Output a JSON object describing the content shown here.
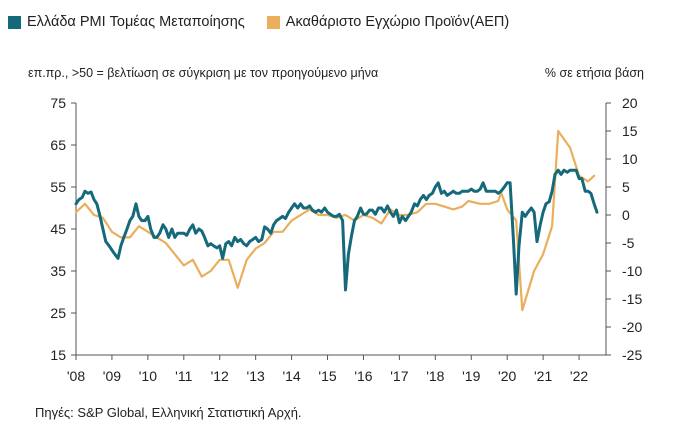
{
  "legend": {
    "pmi": "Ελλάδα PMI Τομέας Μεταποίησης",
    "gdp": "Ακαθάριστο Εγχώριο Προϊόν(ΑΕΠ)"
  },
  "notes": {
    "left": "επ.πρ., >50 = βελτίωση σε σύγκριση με τον προηγούμενο μήνα",
    "right": "% σε ετήσια βάση"
  },
  "source": "Πηγές: S&P Global, Ελληνική Στατιστική Αρχή.",
  "colors": {
    "pmi": "#14697a",
    "gdp": "#eaae5c",
    "axis": "#555555"
  },
  "chart_data": {
    "type": "line",
    "x_tick_labels": [
      "'08",
      "'09",
      "'10",
      "'11",
      "'12",
      "'13",
      "'14",
      "'15",
      "'16",
      "'17",
      "'18",
      "'19",
      "'20",
      "'21",
      "'22"
    ],
    "x_range": [
      2008.0,
      2022.75
    ],
    "y_left": {
      "range": [
        15,
        75
      ],
      "ticks": [
        15,
        25,
        35,
        45,
        55,
        65,
        75
      ]
    },
    "y_right": {
      "range": [
        -25,
        20
      ],
      "ticks": [
        -25,
        -20,
        -15,
        -10,
        -5,
        0,
        5,
        10,
        15,
        20
      ]
    },
    "series": [
      {
        "name": "Ελλάδα PMI Τομέας Μεταποίησης",
        "axis": "left",
        "points": [
          [
            2008.0,
            51
          ],
          [
            2008.08,
            52
          ],
          [
            2008.17,
            52.5
          ],
          [
            2008.25,
            54
          ],
          [
            2008.33,
            53.5
          ],
          [
            2008.42,
            53.8
          ],
          [
            2008.5,
            52
          ],
          [
            2008.58,
            51
          ],
          [
            2008.67,
            48
          ],
          [
            2008.75,
            45
          ],
          [
            2008.83,
            42
          ],
          [
            2008.92,
            41
          ],
          [
            2009.0,
            40
          ],
          [
            2009.08,
            39
          ],
          [
            2009.17,
            38
          ],
          [
            2009.25,
            41
          ],
          [
            2009.33,
            43
          ],
          [
            2009.42,
            45
          ],
          [
            2009.5,
            47
          ],
          [
            2009.58,
            48
          ],
          [
            2009.67,
            51
          ],
          [
            2009.75,
            48
          ],
          [
            2009.83,
            47
          ],
          [
            2009.92,
            47
          ],
          [
            2010.0,
            48
          ],
          [
            2010.08,
            45
          ],
          [
            2010.17,
            43
          ],
          [
            2010.25,
            43
          ],
          [
            2010.33,
            44
          ],
          [
            2010.42,
            46
          ],
          [
            2010.5,
            45
          ],
          [
            2010.58,
            43
          ],
          [
            2010.67,
            45
          ],
          [
            2010.75,
            43
          ],
          [
            2010.83,
            44
          ],
          [
            2010.92,
            44
          ],
          [
            2011.0,
            44
          ],
          [
            2011.08,
            43.5
          ],
          [
            2011.17,
            45
          ],
          [
            2011.25,
            46
          ],
          [
            2011.33,
            44
          ],
          [
            2011.42,
            45
          ],
          [
            2011.5,
            44.5
          ],
          [
            2011.58,
            43
          ],
          [
            2011.67,
            41
          ],
          [
            2011.75,
            41.5
          ],
          [
            2011.83,
            41
          ],
          [
            2011.92,
            40.5
          ],
          [
            2012.0,
            41
          ],
          [
            2012.08,
            38
          ],
          [
            2012.17,
            41.5
          ],
          [
            2012.25,
            42
          ],
          [
            2012.33,
            41
          ],
          [
            2012.42,
            43
          ],
          [
            2012.5,
            42
          ],
          [
            2012.58,
            42.5
          ],
          [
            2012.67,
            41.5
          ],
          [
            2012.75,
            41
          ],
          [
            2012.83,
            42
          ],
          [
            2012.92,
            42.5
          ],
          [
            2013.0,
            43
          ],
          [
            2013.08,
            42
          ],
          [
            2013.17,
            42.5
          ],
          [
            2013.25,
            45.5
          ],
          [
            2013.33,
            45
          ],
          [
            2013.42,
            44
          ],
          [
            2013.5,
            46
          ],
          [
            2013.58,
            47
          ],
          [
            2013.67,
            47.5
          ],
          [
            2013.75,
            48
          ],
          [
            2013.83,
            47.5
          ],
          [
            2013.92,
            49
          ],
          [
            2014.0,
            50
          ],
          [
            2014.08,
            51
          ],
          [
            2014.17,
            50
          ],
          [
            2014.25,
            51
          ],
          [
            2014.33,
            50
          ],
          [
            2014.42,
            50
          ],
          [
            2014.5,
            50.5
          ],
          [
            2014.58,
            49.5
          ],
          [
            2014.67,
            49
          ],
          [
            2014.75,
            49.5
          ],
          [
            2014.83,
            49
          ],
          [
            2014.92,
            50
          ],
          [
            2015.0,
            49
          ],
          [
            2015.08,
            48.5
          ],
          [
            2015.17,
            48
          ],
          [
            2015.25,
            48
          ],
          [
            2015.33,
            48.5
          ],
          [
            2015.42,
            47
          ],
          [
            2015.5,
            30.5
          ],
          [
            2015.58,
            39
          ],
          [
            2015.67,
            43.5
          ],
          [
            2015.75,
            47
          ],
          [
            2015.83,
            48
          ],
          [
            2015.92,
            50
          ],
          [
            2016.0,
            48.5
          ],
          [
            2016.08,
            48.5
          ],
          [
            2016.17,
            49.5
          ],
          [
            2016.25,
            49.5
          ],
          [
            2016.33,
            48.5
          ],
          [
            2016.42,
            50
          ],
          [
            2016.5,
            50
          ],
          [
            2016.58,
            49
          ],
          [
            2016.67,
            50.5
          ],
          [
            2016.75,
            49
          ],
          [
            2016.83,
            48
          ],
          [
            2016.92,
            49.5
          ],
          [
            2017.0,
            46.5
          ],
          [
            2017.08,
            48
          ],
          [
            2017.17,
            47
          ],
          [
            2017.25,
            48
          ],
          [
            2017.33,
            49
          ],
          [
            2017.42,
            51
          ],
          [
            2017.5,
            50.5
          ],
          [
            2017.58,
            52
          ],
          [
            2017.67,
            53
          ],
          [
            2017.75,
            52
          ],
          [
            2017.83,
            53
          ],
          [
            2017.92,
            53.5
          ],
          [
            2018.0,
            55
          ],
          [
            2018.08,
            56
          ],
          [
            2018.17,
            53.5
          ],
          [
            2018.25,
            54
          ],
          [
            2018.33,
            53
          ],
          [
            2018.42,
            53.5
          ],
          [
            2018.5,
            54
          ],
          [
            2018.58,
            53.5
          ],
          [
            2018.67,
            53.5
          ],
          [
            2018.75,
            54
          ],
          [
            2018.83,
            54
          ],
          [
            2018.92,
            54
          ],
          [
            2019.0,
            54.5
          ],
          [
            2019.08,
            54
          ],
          [
            2019.17,
            54
          ],
          [
            2019.25,
            54.5
          ],
          [
            2019.33,
            56
          ],
          [
            2019.42,
            54
          ],
          [
            2019.5,
            54
          ],
          [
            2019.58,
            54
          ],
          [
            2019.67,
            54
          ],
          [
            2019.75,
            53.5
          ],
          [
            2019.83,
            54
          ],
          [
            2019.92,
            55
          ],
          [
            2020.0,
            56
          ],
          [
            2020.08,
            56
          ],
          [
            2020.17,
            43
          ],
          [
            2020.25,
            29.5
          ],
          [
            2020.33,
            41
          ],
          [
            2020.42,
            49
          ],
          [
            2020.5,
            48
          ],
          [
            2020.58,
            49
          ],
          [
            2020.67,
            50
          ],
          [
            2020.75,
            49
          ],
          [
            2020.83,
            42
          ],
          [
            2020.92,
            46
          ],
          [
            2021.0,
            49
          ],
          [
            2021.08,
            51
          ],
          [
            2021.17,
            51.5
          ],
          [
            2021.25,
            54
          ],
          [
            2021.33,
            58
          ],
          [
            2021.42,
            59
          ],
          [
            2021.5,
            58
          ],
          [
            2021.58,
            59
          ],
          [
            2021.67,
            58.5
          ],
          [
            2021.75,
            59
          ],
          [
            2021.83,
            59
          ],
          [
            2021.92,
            59
          ],
          [
            2022.0,
            57
          ],
          [
            2022.08,
            57
          ],
          [
            2022.17,
            54
          ],
          [
            2022.25,
            54
          ],
          [
            2022.33,
            53.5
          ],
          [
            2022.42,
            51
          ],
          [
            2022.5,
            49
          ]
        ]
      },
      {
        "name": "Ακαθάριστο Εγχώριο Προϊόν(ΑΕΠ)",
        "axis": "right",
        "points": [
          [
            2008.0,
            0.5
          ],
          [
            2008.25,
            2
          ],
          [
            2008.5,
            0
          ],
          [
            2008.75,
            -0.5
          ],
          [
            2009.0,
            -3
          ],
          [
            2009.25,
            -4
          ],
          [
            2009.5,
            -4
          ],
          [
            2009.75,
            -2
          ],
          [
            2010.0,
            -3
          ],
          [
            2010.25,
            -4
          ],
          [
            2010.5,
            -5
          ],
          [
            2010.75,
            -7
          ],
          [
            2011.0,
            -9
          ],
          [
            2011.25,
            -8
          ],
          [
            2011.5,
            -11
          ],
          [
            2011.75,
            -10
          ],
          [
            2012.0,
            -8
          ],
          [
            2012.25,
            -8
          ],
          [
            2012.5,
            -13
          ],
          [
            2012.75,
            -8
          ],
          [
            2013.0,
            -6
          ],
          [
            2013.25,
            -5
          ],
          [
            2013.5,
            -3
          ],
          [
            2013.75,
            -3
          ],
          [
            2014.0,
            -1
          ],
          [
            2014.25,
            0
          ],
          [
            2014.5,
            1
          ],
          [
            2014.75,
            0
          ],
          [
            2015.0,
            0
          ],
          [
            2015.25,
            -0.5
          ],
          [
            2015.5,
            0
          ],
          [
            2015.75,
            -1
          ],
          [
            2016.0,
            0
          ],
          [
            2016.25,
            -0.5
          ],
          [
            2016.5,
            -1.5
          ],
          [
            2016.75,
            1
          ],
          [
            2017.0,
            0
          ],
          [
            2017.25,
            0
          ],
          [
            2017.5,
            0.5
          ],
          [
            2017.75,
            2
          ],
          [
            2018.0,
            2
          ],
          [
            2018.25,
            1.5
          ],
          [
            2018.5,
            1
          ],
          [
            2018.75,
            1.5
          ],
          [
            2018.92,
            2.5
          ],
          [
            2019.25,
            2
          ],
          [
            2019.5,
            2
          ],
          [
            2019.75,
            2.5
          ],
          [
            2019.83,
            4
          ],
          [
            2020.0,
            1
          ],
          [
            2020.25,
            -1
          ],
          [
            2020.42,
            -17
          ],
          [
            2020.75,
            -10
          ],
          [
            2021.0,
            -7
          ],
          [
            2021.25,
            -2
          ],
          [
            2021.42,
            15
          ],
          [
            2021.75,
            12
          ],
          [
            2022.0,
            7
          ],
          [
            2022.25,
            6
          ],
          [
            2022.42,
            7
          ]
        ]
      }
    ]
  }
}
